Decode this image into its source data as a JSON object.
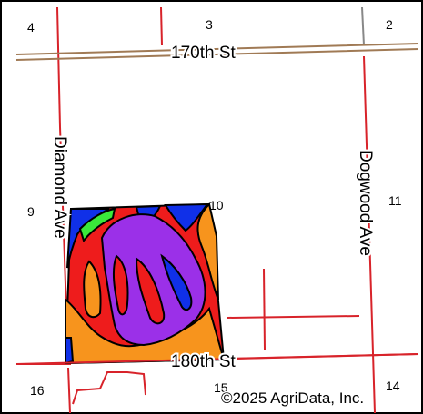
{
  "map": {
    "roads": {
      "north": "170th St",
      "south": "180th St",
      "west": "Diamond Ave",
      "east": "Dogwood Ave"
    },
    "sections": [
      "4",
      "3",
      "2",
      "9",
      "10",
      "11",
      "16",
      "15",
      "14"
    ],
    "copyright": "©2025 AgriData, Inc.",
    "colors": {
      "frame": "#000000",
      "section_line": "#d8232a",
      "road_casing": "#a07a55",
      "soil_red": "#ee1c1c",
      "soil_orange": "#f7941d",
      "soil_purple": "#9b30e8",
      "soil_blue": "#1030e8",
      "soil_green": "#3ae83a"
    }
  }
}
